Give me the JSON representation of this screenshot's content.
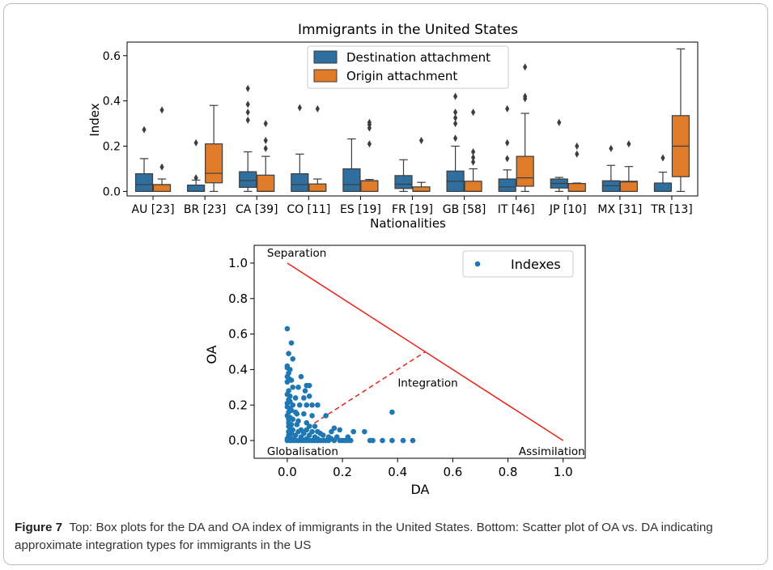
{
  "caption": {
    "lead": "Figure 7",
    "text": "Top: Box plots for the DA and OA index of immigrants in the United States. Bottom: Scatter plot of OA vs. DA indicating approximate integration types for immigrants in the US"
  },
  "chart_data": [
    {
      "type": "box",
      "title": "Immigrants in the United States",
      "xlabel": "Nationalities",
      "ylabel": "Index",
      "ylim": [
        -0.02,
        0.66
      ],
      "yticks": [
        "0.0",
        "0.2",
        "0.4",
        "0.6"
      ],
      "ytick_values": [
        0,
        0.2,
        0.4,
        0.6
      ],
      "categories": [
        "AU [23]",
        "BR [23]",
        "CA [39]",
        "CO [11]",
        "ES [19]",
        "FR [19]",
        "GB [58]",
        "IT [46]",
        "JP [10]",
        "MX [31]",
        "TR [13]"
      ],
      "legend": {
        "placement": "top-center",
        "entries": [
          "Destination attachment",
          "Origin attachment"
        ]
      },
      "colors": {
        "destination": "#2f6f9f",
        "origin": "#e07b2a"
      },
      "series": [
        {
          "name": "Destination attachment",
          "boxes": [
            {
              "whislo": 0,
              "q1": 0,
              "med": 0.03,
              "q3": 0.078,
              "whishi": 0.145,
              "fliers": [
                0.273
              ]
            },
            {
              "whislo": 0,
              "q1": 0,
              "med": 0,
              "q3": 0.028,
              "whishi": 0.05,
              "fliers": [
                0.06,
                0.215
              ]
            },
            {
              "whislo": 0,
              "q1": 0.018,
              "med": 0.048,
              "q3": 0.087,
              "whishi": 0.175,
              "fliers": [
                0.315,
                0.35,
                0.385,
                0.455
              ]
            },
            {
              "whislo": 0,
              "q1": 0,
              "med": 0.03,
              "q3": 0.078,
              "whishi": 0.165,
              "fliers": [
                0.37
              ]
            },
            {
              "whislo": 0,
              "q1": 0,
              "med": 0.03,
              "q3": 0.1,
              "whishi": 0.232,
              "fliers": []
            },
            {
              "whislo": 0,
              "q1": 0.013,
              "med": 0.032,
              "q3": 0.07,
              "whishi": 0.14,
              "fliers": []
            },
            {
              "whislo": 0,
              "q1": 0,
              "med": 0.045,
              "q3": 0.09,
              "whishi": 0.2,
              "fliers": [
                0.235,
                0.3,
                0.325,
                0.35,
                0.42
              ]
            },
            {
              "whislo": 0,
              "q1": 0,
              "med": 0.02,
              "q3": 0.055,
              "whishi": 0.095,
              "fliers": [
                0.145,
                0.215,
                0.365
              ]
            },
            {
              "whislo": 0,
              "q1": 0.015,
              "med": 0.035,
              "q3": 0.055,
              "whishi": 0.062,
              "fliers": [
                0.305
              ]
            },
            {
              "whislo": 0,
              "q1": 0,
              "med": 0.025,
              "q3": 0.047,
              "whishi": 0.115,
              "fliers": [
                0.19
              ]
            },
            {
              "whislo": 0,
              "q1": 0,
              "med": 0,
              "q3": 0.037,
              "whishi": 0.085,
              "fliers": [
                0.148
              ]
            }
          ]
        },
        {
          "name": "Origin attachment",
          "boxes": [
            {
              "whislo": 0,
              "q1": 0,
              "med": 0.03,
              "q3": 0.03,
              "whishi": 0.055,
              "fliers": [
                0.108,
                0.36
              ]
            },
            {
              "whislo": 0,
              "q1": 0.038,
              "med": 0.08,
              "q3": 0.21,
              "whishi": 0.38,
              "fliers": []
            },
            {
              "whislo": 0,
              "q1": 0,
              "med": 0,
              "q3": 0.072,
              "whishi": 0.155,
              "fliers": [
                0.19,
                0.225,
                0.3
              ]
            },
            {
              "whislo": 0,
              "q1": 0,
              "med": 0,
              "q3": 0.033,
              "whishi": 0.055,
              "fliers": [
                0.365
              ]
            },
            {
              "whislo": 0,
              "q1": 0,
              "med": 0.047,
              "q3": 0.047,
              "whishi": 0.053,
              "fliers": [
                0.21,
                0.28,
                0.295,
                0.305
              ]
            },
            {
              "whislo": 0,
              "q1": 0,
              "med": 0,
              "q3": 0.02,
              "whishi": 0.04,
              "fliers": [
                0.225
              ]
            },
            {
              "whislo": 0,
              "q1": 0,
              "med": 0,
              "q3": 0.045,
              "whishi": 0.1,
              "fliers": [
                0.13,
                0.15,
                0.175,
                0.35
              ]
            },
            {
              "whislo": 0,
              "q1": 0.023,
              "med": 0.06,
              "q3": 0.155,
              "whishi": 0.345,
              "fliers": [
                0.41,
                0.42,
                0.55
              ]
            },
            {
              "whislo": 0,
              "q1": 0,
              "med": 0,
              "q3": 0.035,
              "whishi": 0.037,
              "fliers": [
                0.165,
                0.2
              ]
            },
            {
              "whislo": 0,
              "q1": 0,
              "med": 0.042,
              "q3": 0.045,
              "whishi": 0.11,
              "fliers": [
                0.21
              ]
            },
            {
              "whislo": 0,
              "q1": 0.065,
              "med": 0.2,
              "q3": 0.335,
              "whishi": 0.63,
              "fliers": []
            }
          ]
        }
      ]
    },
    {
      "type": "scatter",
      "xlabel": "DA",
      "ylabel": "OA",
      "xlim": [
        -0.12,
        1.08
      ],
      "ylim": [
        -0.1,
        1.1
      ],
      "xticks": [
        "0.0",
        "0.2",
        "0.4",
        "0.6",
        "0.8",
        "1.0"
      ],
      "xtick_values": [
        0,
        0.2,
        0.4,
        0.6,
        0.8,
        1.0
      ],
      "yticks": [
        "0.0",
        "0.2",
        "0.4",
        "0.6",
        "0.8",
        "1.0"
      ],
      "ytick_values": [
        0,
        0.2,
        0.4,
        0.6,
        0.8,
        1.0
      ],
      "legend": {
        "placement": "top-right",
        "entries": [
          "Indexes"
        ]
      },
      "colors": {
        "points": "#1f77b4",
        "lines": "#e8231a"
      },
      "annotations": [
        {
          "text": "Separation",
          "x": 0.0,
          "y": 1.0
        },
        {
          "text": "Integration",
          "x": 0.5,
          "y": 0.35
        },
        {
          "text": "Globalisation",
          "x": 0.0,
          "y": 0.0
        },
        {
          "text": "Assimilation",
          "x": 1.0,
          "y": 0.0
        }
      ],
      "lines": [
        {
          "style": "solid",
          "from": [
            0,
            1
          ],
          "to": [
            1,
            0
          ]
        },
        {
          "style": "dashed",
          "from": [
            0,
            0
          ],
          "to": [
            0.5,
            0.5
          ]
        }
      ],
      "points": [
        [
          0,
          0.63
        ],
        [
          0.015,
          0.55
        ],
        [
          0.005,
          0.49
        ],
        [
          0.02,
          0.46
        ],
        [
          0,
          0.42
        ],
        [
          0,
          0.41
        ],
        [
          0.01,
          0.4
        ],
        [
          0.005,
          0.38
        ],
        [
          0,
          0.36
        ],
        [
          0.005,
          0.35
        ],
        [
          0.015,
          0.34
        ],
        [
          0,
          0.33
        ],
        [
          0.05,
          0.36
        ],
        [
          0.07,
          0.31
        ],
        [
          0.08,
          0.31
        ],
        [
          0.02,
          0.3
        ],
        [
          0.04,
          0.3
        ],
        [
          0.065,
          0.28
        ],
        [
          0.005,
          0.28
        ],
        [
          0,
          0.26
        ],
        [
          0.01,
          0.25
        ],
        [
          0.03,
          0.24
        ],
        [
          0.06,
          0.24
        ],
        [
          0.08,
          0.25
        ],
        [
          0.005,
          0.23
        ],
        [
          0.01,
          0.22
        ],
        [
          0,
          0.21
        ],
        [
          0.02,
          0.2
        ],
        [
          0.045,
          0.2
        ],
        [
          0.07,
          0.2
        ],
        [
          0.09,
          0.2
        ],
        [
          0.11,
          0.2
        ],
        [
          0,
          0.19
        ],
        [
          0.01,
          0.18
        ],
        [
          0.015,
          0.17
        ],
        [
          0.005,
          0.16
        ],
        [
          0.03,
          0.16
        ],
        [
          0.035,
          0.15
        ],
        [
          0.06,
          0.15
        ],
        [
          0,
          0.14
        ],
        [
          0.01,
          0.13
        ],
        [
          0.09,
          0.14
        ],
        [
          0.14,
          0.14
        ],
        [
          0.005,
          0.12
        ],
        [
          0.02,
          0.12
        ],
        [
          0.04,
          0.11
        ],
        [
          0.005,
          0.1
        ],
        [
          0.07,
          0.1
        ],
        [
          0.015,
          0.09
        ],
        [
          0.035,
          0.09
        ],
        [
          0.005,
          0.08
        ],
        [
          0.08,
          0.08
        ],
        [
          0.1,
          0.08
        ],
        [
          0.01,
          0.07
        ],
        [
          0.02,
          0.06
        ],
        [
          0.05,
          0.06
        ],
        [
          0.07,
          0.06
        ],
        [
          0.005,
          0.05
        ],
        [
          0.04,
          0.05
        ],
        [
          0.09,
          0.05
        ],
        [
          0.11,
          0.05
        ],
        [
          0.015,
          0.04
        ],
        [
          0.06,
          0.04
        ],
        [
          0.12,
          0.04
        ],
        [
          0.16,
          0.05
        ],
        [
          0.17,
          0.07
        ],
        [
          0.19,
          0.06
        ],
        [
          0.24,
          0.05
        ],
        [
          0.005,
          0.03
        ],
        [
          0.03,
          0.03
        ],
        [
          0.08,
          0.03
        ],
        [
          0.13,
          0.03
        ],
        [
          0.15,
          0.02
        ],
        [
          0.01,
          0.02
        ],
        [
          0.05,
          0.02
        ],
        [
          0.1,
          0.02
        ],
        [
          0.18,
          0.02
        ],
        [
          0.22,
          0.02
        ],
        [
          0,
          0.01
        ],
        [
          0.025,
          0.01
        ],
        [
          0.07,
          0.01
        ],
        [
          0.11,
          0.01
        ],
        [
          0.16,
          0.01
        ],
        [
          0,
          0
        ],
        [
          0.01,
          0
        ],
        [
          0.02,
          0
        ],
        [
          0.03,
          0
        ],
        [
          0.04,
          0
        ],
        [
          0.05,
          0
        ],
        [
          0.06,
          0
        ],
        [
          0.07,
          0
        ],
        [
          0.08,
          0
        ],
        [
          0.09,
          0
        ],
        [
          0.1,
          0
        ],
        [
          0.11,
          0
        ],
        [
          0.12,
          0
        ],
        [
          0.13,
          0
        ],
        [
          0.14,
          0
        ],
        [
          0.15,
          0
        ],
        [
          0.17,
          0
        ],
        [
          0.19,
          0
        ],
        [
          0.2,
          0
        ],
        [
          0.21,
          0
        ],
        [
          0.22,
          0
        ],
        [
          0.23,
          0
        ],
        [
          0.3,
          0
        ],
        [
          0.31,
          0
        ],
        [
          0.345,
          0
        ],
        [
          0.38,
          0
        ],
        [
          0.42,
          0
        ],
        [
          0.455,
          0
        ],
        [
          0.38,
          0.16
        ],
        [
          0.28,
          0.05
        ]
      ]
    }
  ]
}
